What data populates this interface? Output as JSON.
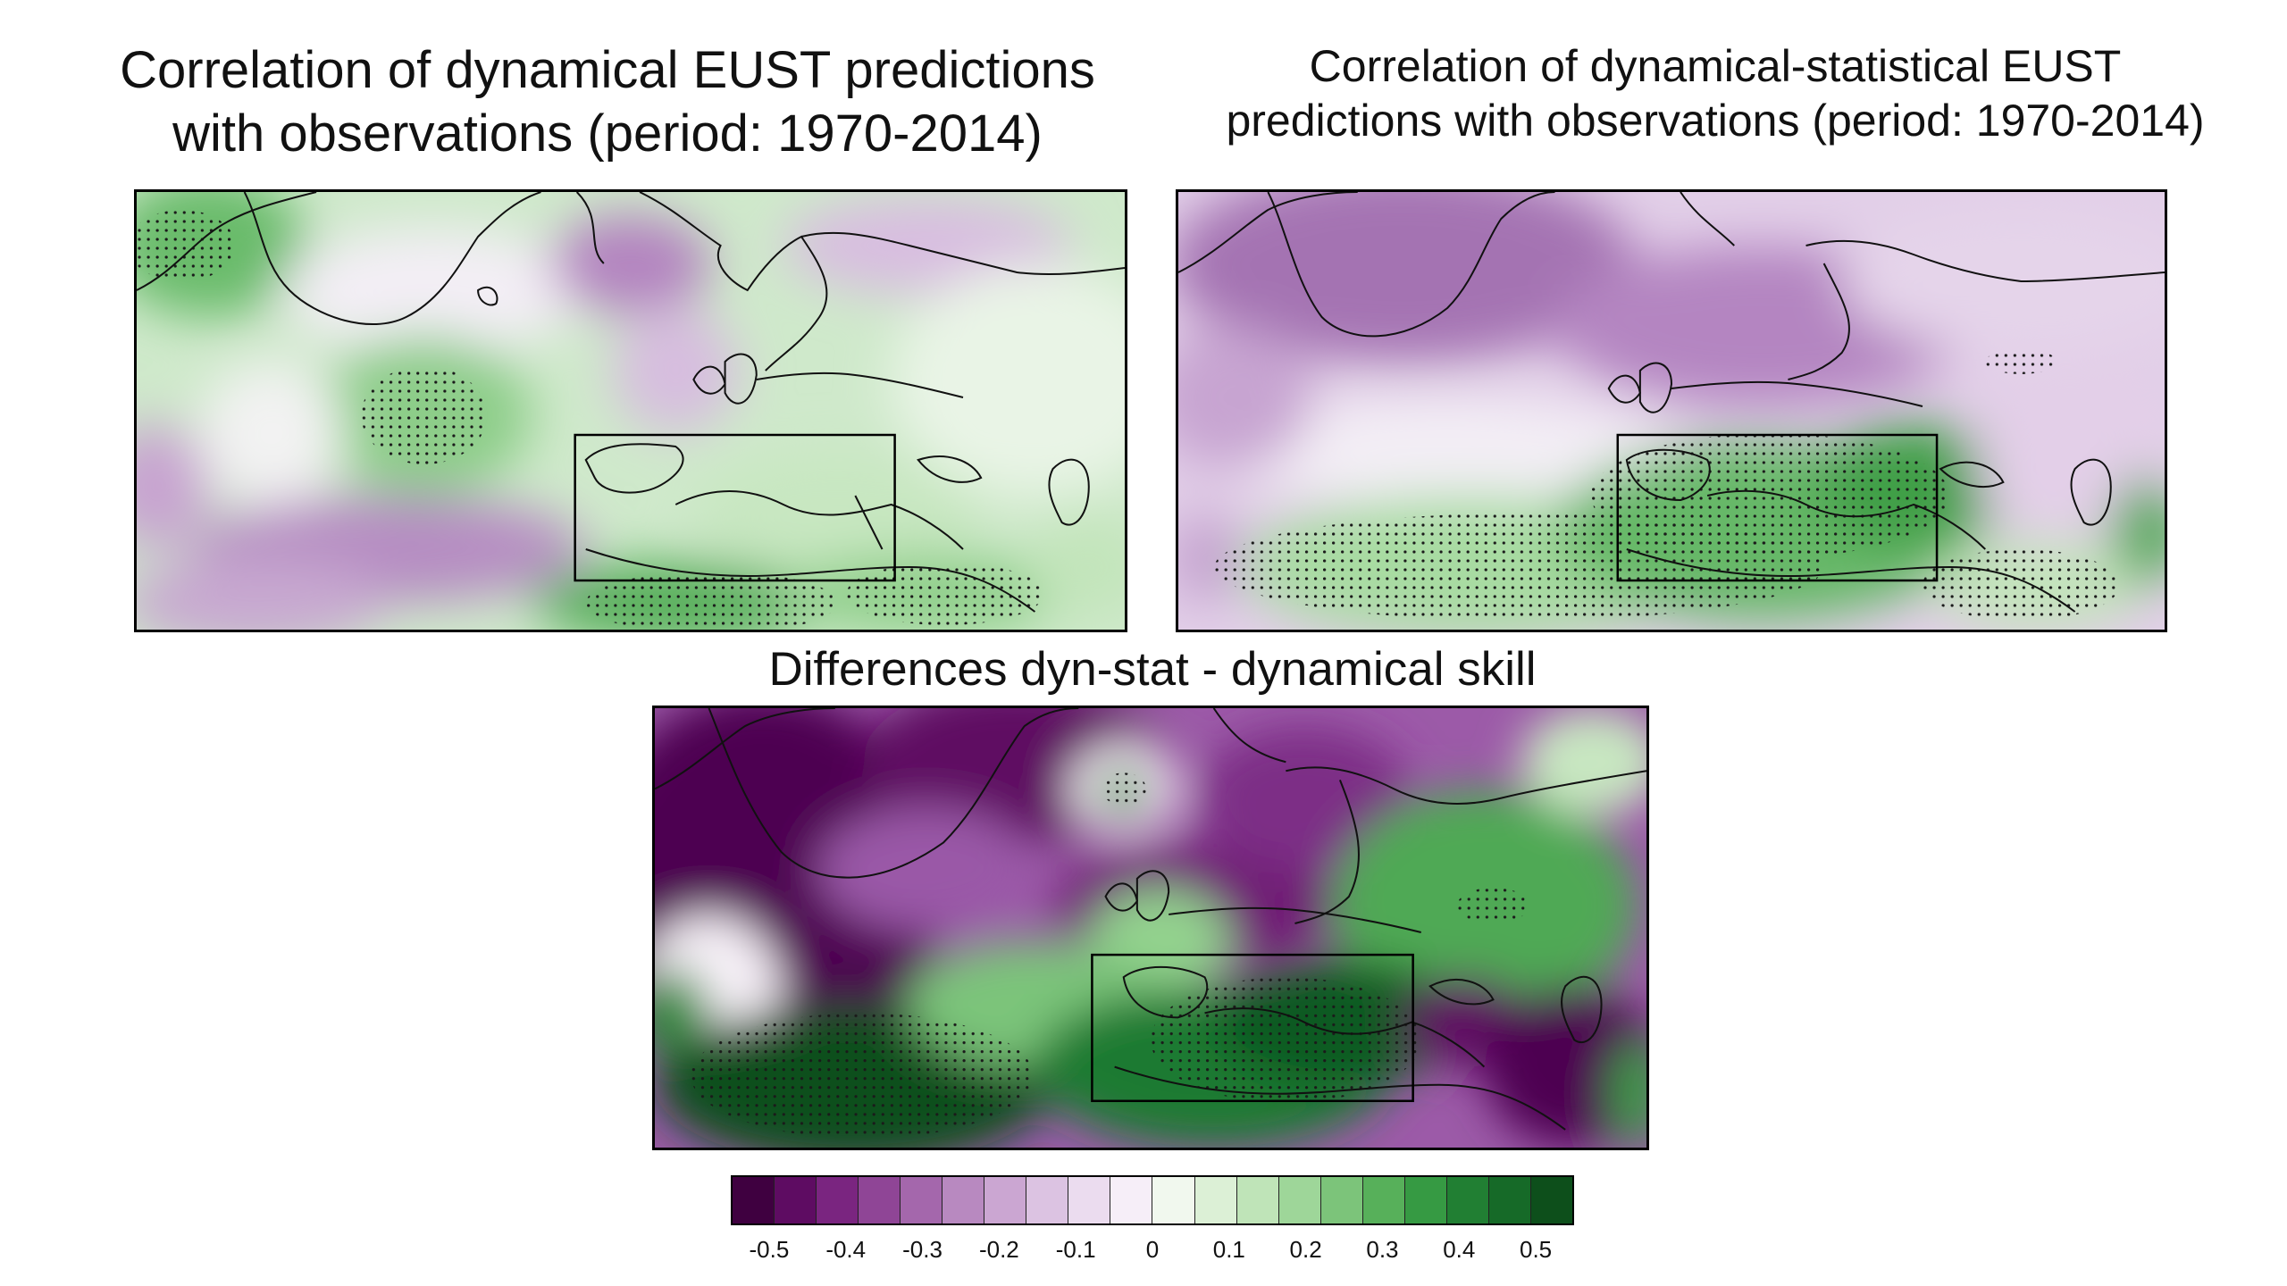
{
  "panels": [
    {
      "id": "dynamical",
      "title_lines": [
        "Correlation of dynamical EUST predictions",
        "with observations (period: 1970-2014)"
      ],
      "region_box": true
    },
    {
      "id": "dynamical-statistical",
      "title_lines": [
        "Correlation of dynamical-statistical EUST",
        "predictions with observations (period: 1970-2014)"
      ],
      "region_box": true
    },
    {
      "id": "difference",
      "title_lines": [
        "Differences dyn-stat - dynamical skill"
      ],
      "region_box": true
    }
  ],
  "colorbar": {
    "tick_labels": [
      "-0.5",
      "-0.4",
      "-0.3",
      "-0.2",
      "-0.1",
      "0",
      "0.1",
      "0.2",
      "0.3",
      "0.4",
      "0.5"
    ],
    "tick_values": [
      -0.5,
      -0.4,
      -0.3,
      -0.2,
      -0.1,
      0,
      0.1,
      0.2,
      0.3,
      0.4,
      0.5
    ],
    "range": [
      -0.55,
      0.55
    ],
    "colors": [
      "#3f0040",
      "#5e0c62",
      "#7a2580",
      "#8f4596",
      "#a467ac",
      "#b889c0",
      "#cba6d2",
      "#dcc3e2",
      "#ebdcef",
      "#f6eef8",
      "#f1f8ee",
      "#dcf0d6",
      "#bfe4b8",
      "#9ed699",
      "#7cc47a",
      "#57b05a",
      "#369a43",
      "#217f33",
      "#166a28",
      "#0d4f1b"
    ]
  },
  "legend_colors": {
    "strong_negative": "#5e0c62",
    "neutral": "#f6f6f6",
    "strong_positive": "#0d4f1b"
  }
}
